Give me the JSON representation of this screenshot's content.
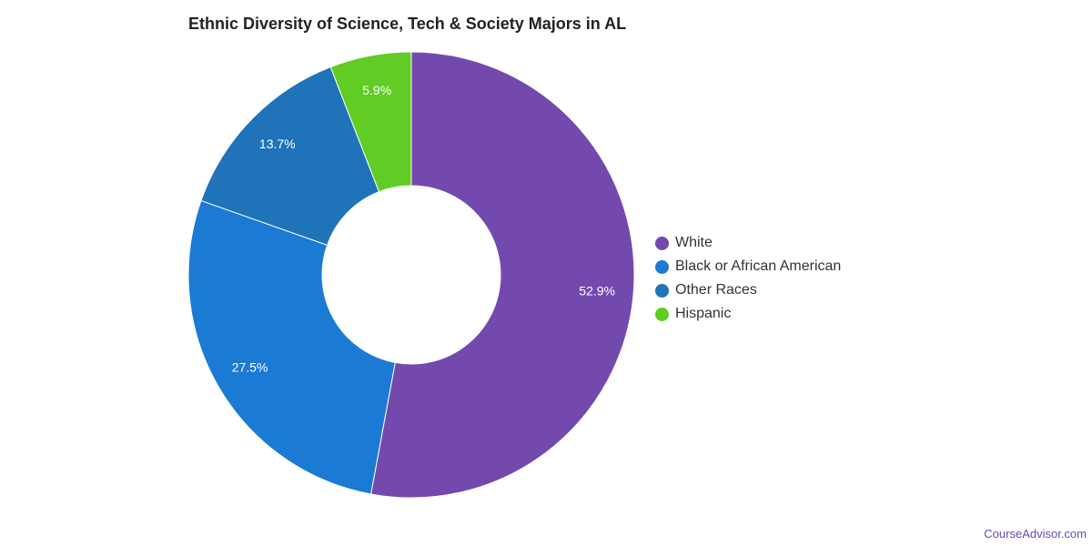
{
  "chart_data": {
    "type": "pie",
    "title": "Ethnic Diversity of Science, Tech & Society Majors in AL",
    "slices": [
      {
        "name": "White",
        "value": 52.9,
        "label": "52.9%",
        "color": "#7449ae"
      },
      {
        "name": "Black or African American",
        "value": 27.5,
        "label": "27.5%",
        "color": "#1a7ad4"
      },
      {
        "name": "Other Races",
        "value": 13.7,
        "label": "13.7%",
        "color": "#1f73b8"
      },
      {
        "name": "Hispanic",
        "value": 5.9,
        "label": "5.9%",
        "color": "#60cc24"
      }
    ],
    "legend_position": "right"
  },
  "footer": {
    "credit": "CourseAdvisor.com"
  }
}
